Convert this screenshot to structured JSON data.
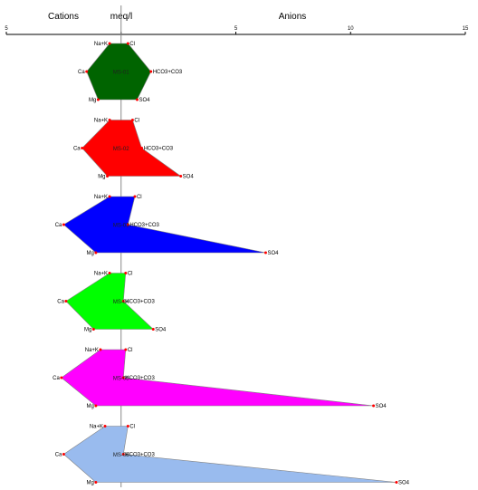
{
  "chart_data": {
    "type": "stiff",
    "header": {
      "left": "Cations",
      "center": "meq/l",
      "right": "Anions"
    },
    "xaxis": {
      "ticks": [
        {
          "value": -5,
          "label": "5"
        },
        {
          "value": 0,
          "label": ""
        },
        {
          "value": 5,
          "label": "5"
        },
        {
          "value": 10,
          "label": "10"
        },
        {
          "value": 15,
          "label": "15"
        }
      ],
      "range": [
        -5,
        15
      ]
    },
    "ion_labels": {
      "cations": [
        "Na+K",
        "Ca",
        "Mg"
      ],
      "anions": [
        "Cl",
        "HCO3+CO3",
        "SO4"
      ]
    },
    "samples": [
      {
        "name": "MS-01",
        "color": "#006400",
        "cations": {
          "Na+K": 0.5,
          "Ca": 1.5,
          "Mg": 1.0
        },
        "anions": {
          "Cl": 0.3,
          "HCO3+CO3": 1.3,
          "SO4": 0.7
        }
      },
      {
        "name": "MS-02",
        "color": "#ff0000",
        "cations": {
          "Na+K": 0.5,
          "Ca": 1.7,
          "Mg": 0.6
        },
        "anions": {
          "Cl": 0.5,
          "HCO3+CO3": 0.9,
          "SO4": 2.6
        }
      },
      {
        "name": "MS-03",
        "color": "#0000ff",
        "cations": {
          "Na+K": 0.5,
          "Ca": 2.5,
          "Mg": 1.1
        },
        "anions": {
          "Cl": 0.6,
          "HCO3+CO3": 0.3,
          "SO4": 6.3
        }
      },
      {
        "name": "MS-04",
        "color": "#00ff00",
        "cations": {
          "Na+K": 0.5,
          "Ca": 2.4,
          "Mg": 1.2
        },
        "anions": {
          "Cl": 0.2,
          "HCO3+CO3": 0.1,
          "SO4": 1.4
        }
      },
      {
        "name": "MS-05",
        "color": "#ff00ff",
        "cations": {
          "Na+K": 0.9,
          "Ca": 2.6,
          "Mg": 1.1
        },
        "anions": {
          "Cl": 0.2,
          "HCO3+CO3": 0.1,
          "SO4": 11.0
        }
      },
      {
        "name": "MS-06",
        "color": "#99bbee",
        "cations": {
          "Na+K": 0.7,
          "Ca": 2.5,
          "Mg": 1.1
        },
        "anions": {
          "Cl": 0.3,
          "HCO3+CO3": 0.1,
          "SO4": 12.0
        }
      }
    ]
  }
}
